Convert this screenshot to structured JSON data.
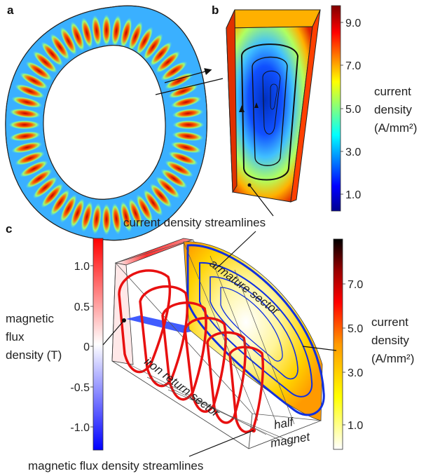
{
  "panels": {
    "a": {
      "letter": "a"
    },
    "b": {
      "letter": "b",
      "colorbar": {
        "ticks": [
          "9.0",
          "7.0",
          "5.0",
          "3.0",
          "1.0"
        ],
        "label_lines": [
          "current",
          "density",
          "(A/mm²)"
        ]
      },
      "callout": "current density streamlines"
    },
    "c": {
      "letter": "c",
      "left_colorbar": {
        "ticks": [
          "1.0",
          "0.5",
          "0",
          "-0.5",
          "-1.0"
        ],
        "label_lines": [
          "magnetic",
          "flux",
          "density (T)"
        ]
      },
      "right_colorbar": {
        "ticks": [
          "7.0",
          "5.0",
          "3.0",
          "1.0"
        ],
        "label_lines": [
          "current",
          "density",
          "(A/mm²)"
        ]
      },
      "labels": {
        "armature": "armature sector",
        "iron": "iron return sector",
        "half": "half",
        "magnet": "magnet"
      },
      "callout": "magnetic flux density streamlines"
    }
  },
  "colors": {
    "jet_low": "#00008f",
    "jet_high": "#800000",
    "flux_negative": "#0000ff",
    "flux_positive": "#ff0000",
    "heat_low": "#ffffff",
    "heat_high": "#000000"
  }
}
